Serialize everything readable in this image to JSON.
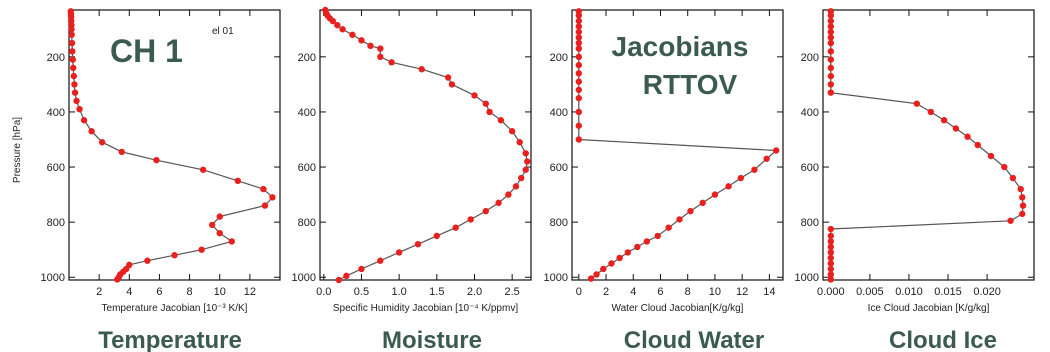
{
  "annotations": {
    "channel": "CH 1",
    "elevation": "el 01",
    "title_line1": "Jacobians",
    "title_line2": "RTTOV"
  },
  "colors": {
    "marker": "#e8201e",
    "line": "#555555",
    "caption": "#3b5b50"
  },
  "chart_data": [
    {
      "type": "line",
      "caption": "Temperature",
      "xlabel": "Temperature Jacobian [10⁻³ K/K]",
      "ylabel": "Pressure [hPa]",
      "xlim": [
        0,
        14
      ],
      "ylim": [
        1010,
        30
      ],
      "y_inverted": true,
      "xticks": [
        2,
        4,
        6,
        8,
        10,
        12
      ],
      "xtick_labels": [
        "2",
        "4",
        "6",
        "8",
        "10",
        "12"
      ],
      "yticks": [
        200,
        400,
        600,
        800,
        1000
      ],
      "ytick_labels": [
        "200",
        "400",
        "600",
        "800",
        "1000"
      ],
      "series": [
        {
          "x": [
            0.12,
            0.13,
            0.14,
            0.15,
            0.16,
            0.17,
            0.18,
            0.2,
            0.22,
            0.25,
            0.28,
            0.32,
            0.36,
            0.4,
            0.5,
            0.7,
            1.0,
            1.5,
            2.2,
            3.5,
            5.8,
            8.9,
            11.2,
            12.9,
            13.5,
            13.0,
            10.0,
            9.5,
            10.0,
            10.8,
            8.8,
            7.0,
            5.2,
            4.0,
            3.8,
            3.6,
            3.4,
            3.3,
            3.2
          ],
          "y": [
            35,
            45,
            55,
            70,
            85,
            100,
            120,
            150,
            180,
            210,
            240,
            270,
            300,
            330,
            360,
            390,
            430,
            470,
            510,
            545,
            575,
            610,
            650,
            680,
            710,
            740,
            780,
            810,
            840,
            870,
            900,
            920,
            940,
            955,
            970,
            980,
            990,
            1000,
            1008
          ]
        }
      ]
    },
    {
      "type": "line",
      "caption": "Moisture",
      "xlabel": "Specific Humidity Jacobian [10⁻⁴ K/ppmv]",
      "ylabel": "",
      "xlim": [
        -0.05,
        2.75
      ],
      "ylim": [
        1010,
        30
      ],
      "y_inverted": true,
      "xticks": [
        0.0,
        0.5,
        1.0,
        1.5,
        2.0,
        2.5
      ],
      "xtick_labels": [
        "0.0",
        "0.5",
        "1.0",
        "1.5",
        "2.0",
        "2.5"
      ],
      "yticks": [
        200,
        400,
        600,
        800,
        1000
      ],
      "ytick_labels": [
        "200",
        "400",
        "600",
        "800",
        "1000"
      ],
      "series": [
        {
          "x": [
            0.02,
            0.03,
            0.05,
            0.08,
            0.12,
            0.18,
            0.25,
            0.38,
            0.5,
            0.62,
            0.75,
            0.75,
            0.9,
            1.3,
            1.65,
            1.7,
            2.0,
            2.15,
            2.2,
            2.35,
            2.5,
            2.6,
            2.68,
            2.7,
            2.68,
            2.62,
            2.55,
            2.45,
            2.32,
            2.15,
            1.95,
            1.75,
            1.5,
            1.25,
            1.0,
            0.75,
            0.5,
            0.3,
            0.2
          ],
          "y": [
            30,
            40,
            50,
            60,
            70,
            85,
            100,
            120,
            140,
            160,
            170,
            200,
            220,
            245,
            275,
            300,
            340,
            370,
            400,
            430,
            470,
            510,
            550,
            580,
            610,
            640,
            670,
            700,
            730,
            760,
            790,
            820,
            850,
            880,
            910,
            940,
            970,
            995,
            1010
          ]
        }
      ]
    },
    {
      "type": "line",
      "caption": "Cloud Water",
      "xlabel": "Water Cloud Jacobian[K/g/kg]",
      "ylabel": "",
      "xlim": [
        -0.5,
        15
      ],
      "ylim": [
        1010,
        30
      ],
      "y_inverted": true,
      "xticks": [
        0,
        2,
        4,
        6,
        8,
        10,
        12,
        14
      ],
      "xtick_labels": [
        "0",
        "2",
        "4",
        "6",
        "8",
        "10",
        "12",
        "14"
      ],
      "yticks": [
        200,
        400,
        600,
        800,
        1000
      ],
      "ytick_labels": [
        "200",
        "400",
        "600",
        "800",
        "1000"
      ],
      "series": [
        {
          "x": [
            0,
            0,
            0,
            0,
            0,
            0,
            0,
            0,
            0,
            0,
            0,
            0,
            0,
            0,
            0,
            0,
            0,
            14.5,
            13.8,
            12.9,
            11.9,
            11,
            10,
            9.1,
            8.2,
            7.4,
            6.6,
            5.8,
            5,
            4.3,
            3.6,
            3,
            2.4,
            1.8,
            1.3,
            0.9
          ],
          "y": [
            35,
            50,
            70,
            90,
            110,
            130,
            150,
            170,
            200,
            230,
            260,
            290,
            320,
            350,
            400,
            450,
            500,
            540,
            570,
            610,
            640,
            670,
            700,
            730,
            760,
            790,
            820,
            850,
            870,
            890,
            910,
            930,
            950,
            970,
            990,
            1005
          ]
        }
      ]
    },
    {
      "type": "line",
      "caption": "Cloud Ice",
      "xlabel": "Ice Cloud Jacobian [K/g/kg]",
      "ylabel": "",
      "xlim": [
        -0.001,
        0.026
      ],
      "ylim": [
        1010,
        30
      ],
      "y_inverted": true,
      "xticks": [
        0.0,
        0.005,
        0.01,
        0.015,
        0.02
      ],
      "xtick_labels": [
        "0.000",
        "0.005",
        "0.010",
        "0.015",
        "0.020"
      ],
      "yticks": [
        200,
        400,
        600,
        800,
        1000
      ],
      "ytick_labels": [
        "200",
        "400",
        "600",
        "800",
        "1000"
      ],
      "series": [
        {
          "x": [
            0,
            0,
            0,
            0,
            0,
            0,
            0,
            0,
            0,
            0,
            0,
            0,
            0,
            0.011,
            0.0128,
            0.0145,
            0.016,
            0.0175,
            0.0188,
            0.0205,
            0.0222,
            0.0233,
            0.0243,
            0.0245,
            0.0246,
            0.0245,
            0.023,
            0,
            0,
            0,
            0,
            0,
            0,
            0,
            0,
            0,
            0
          ],
          "y": [
            35,
            50,
            70,
            90,
            110,
            130,
            150,
            180,
            210,
            240,
            270,
            300,
            330,
            370,
            400,
            430,
            460,
            490,
            520,
            560,
            600,
            640,
            680,
            710,
            740,
            770,
            795,
            825,
            850,
            870,
            890,
            910,
            930,
            950,
            970,
            990,
            1008
          ]
        }
      ]
    }
  ]
}
